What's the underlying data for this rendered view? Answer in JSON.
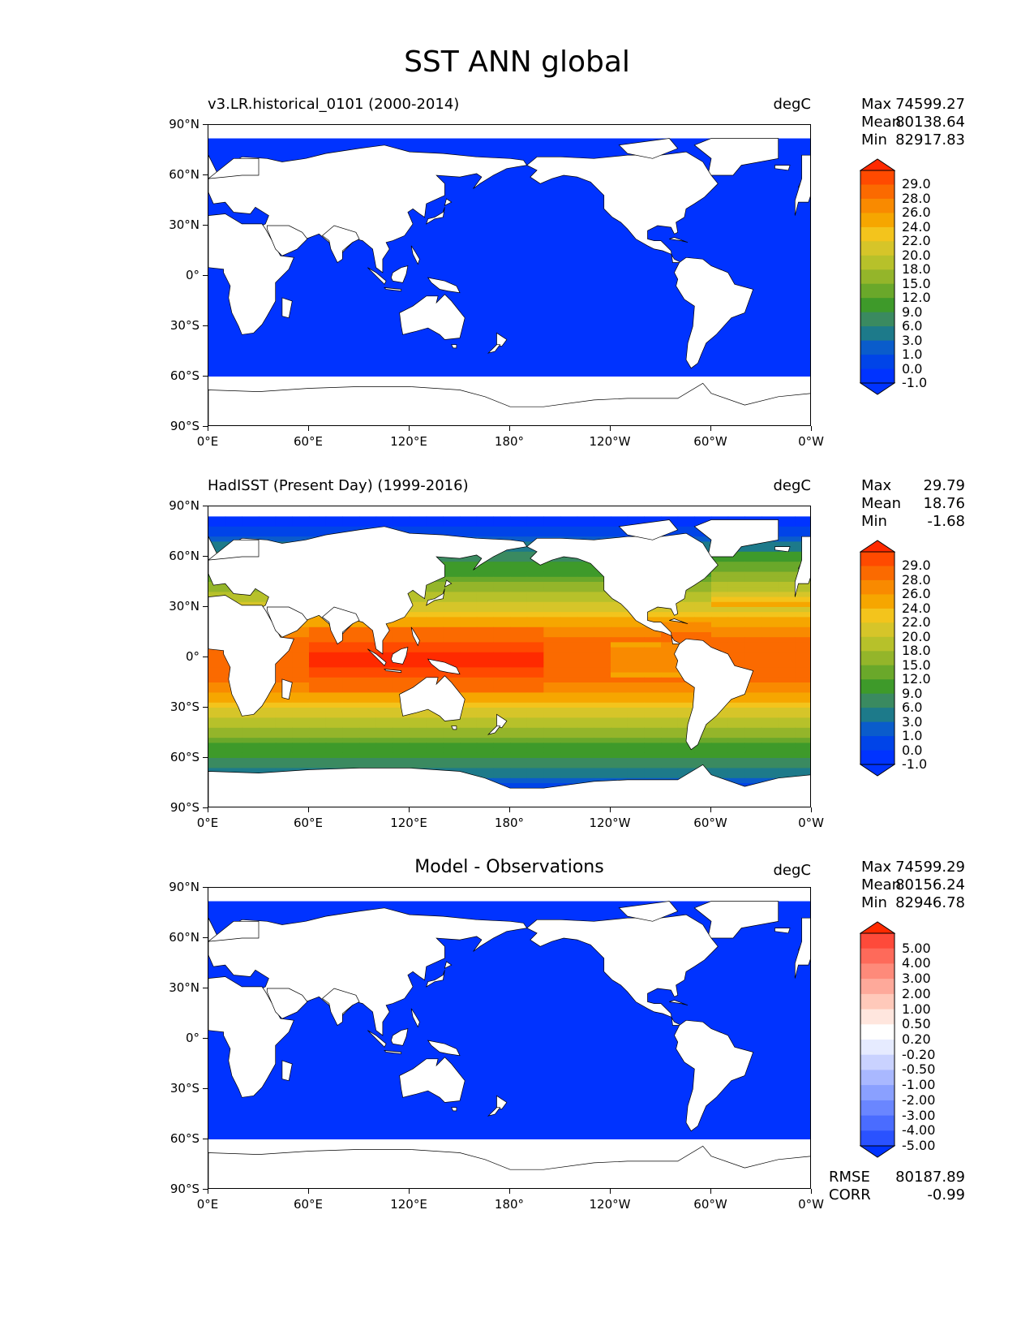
{
  "figure": {
    "title": "SST ANN global"
  },
  "axes": {
    "yticks": [
      "90°N",
      "60°N",
      "30°N",
      "0°",
      "30°S",
      "60°S",
      "90°S"
    ],
    "xticks": [
      "0°E",
      "60°E",
      "120°E",
      "180°",
      "120°W",
      "60°W",
      "0°W"
    ]
  },
  "panels": [
    {
      "title": "v3.LR.historical_0101 (2000-2014)",
      "units": "degC",
      "stats": [
        {
          "label": "Max",
          "value": "74599.27"
        },
        {
          "label": "Mean",
          "value": "80138.64"
        },
        {
          "label": "Min",
          "value": "82917.83"
        }
      ],
      "colorbar_labels": [
        "29.0",
        "28.0",
        "26.0",
        "24.0",
        "22.0",
        "20.0",
        "18.0",
        "15.0",
        "12.0",
        "9.0",
        "6.0",
        "3.0",
        "1.0",
        "0.0",
        "-1.0"
      ],
      "colorbar_colors": [
        "#ff2a00",
        "#ff4a00",
        "#fb6a00",
        "#f98a00",
        "#f6a600",
        "#f3c41c",
        "#d6c529",
        "#b7c12a",
        "#94b52a",
        "#6aa82a",
        "#3e9a2a",
        "#3a8a60",
        "#1d7a8a",
        "#0a5ccb",
        "#0044e8",
        "#0033ff",
        "#0033ff"
      ],
      "field": "model"
    },
    {
      "title": "HadISST (Present Day) (1999-2016)",
      "units": "degC",
      "stats": [
        {
          "label": "Max",
          "value": "29.79"
        },
        {
          "label": "Mean",
          "value": "18.76"
        },
        {
          "label": "Min",
          "value": "-1.68"
        }
      ],
      "colorbar_labels": [
        "29.0",
        "28.0",
        "26.0",
        "24.0",
        "22.0",
        "20.0",
        "18.0",
        "15.0",
        "12.0",
        "9.0",
        "6.0",
        "3.0",
        "1.0",
        "0.0",
        "-1.0"
      ],
      "colorbar_colors": [
        "#ff2a00",
        "#ff4a00",
        "#fb6a00",
        "#f98a00",
        "#f6a600",
        "#f3c41c",
        "#d6c529",
        "#b7c12a",
        "#94b52a",
        "#6aa82a",
        "#3e9a2a",
        "#3a8a60",
        "#1d7a8a",
        "#0a5ccb",
        "#0044e8",
        "#0033ff",
        "#0033ff"
      ],
      "field": "obs"
    },
    {
      "title": "Model - Observations",
      "units": "degC",
      "stats": [
        {
          "label": "Max",
          "value": "74599.29"
        },
        {
          "label": "Mean",
          "value": "80156.24"
        },
        {
          "label": "Min",
          "value": "82946.78"
        }
      ],
      "colorbar_labels": [
        "5.00",
        "4.00",
        "3.00",
        "2.00",
        "1.00",
        "0.50",
        "0.20",
        "-0.20",
        "-0.50",
        "-1.00",
        "-2.00",
        "-3.00",
        "-4.00",
        "-5.00"
      ],
      "colorbar_colors": [
        "#ff2a00",
        "#fe4a3a",
        "#fe6a5a",
        "#fe8a7a",
        "#fea99a",
        "#ffc9ba",
        "#ffe6de",
        "#ffffff",
        "#e6ebff",
        "#c9d2ff",
        "#a9b8ff",
        "#8aa0ff",
        "#6a86ff",
        "#4a6cff",
        "#2a52ff",
        "#0033ff"
      ],
      "error_stats": [
        {
          "label": "RMSE",
          "value": "80187.89"
        },
        {
          "label": "CORR",
          "value": "-0.99"
        }
      ],
      "field": "diff"
    }
  ],
  "colors": {
    "ocean_flag": "#0033ff",
    "land": "#ffffff",
    "coast": "#000000"
  }
}
